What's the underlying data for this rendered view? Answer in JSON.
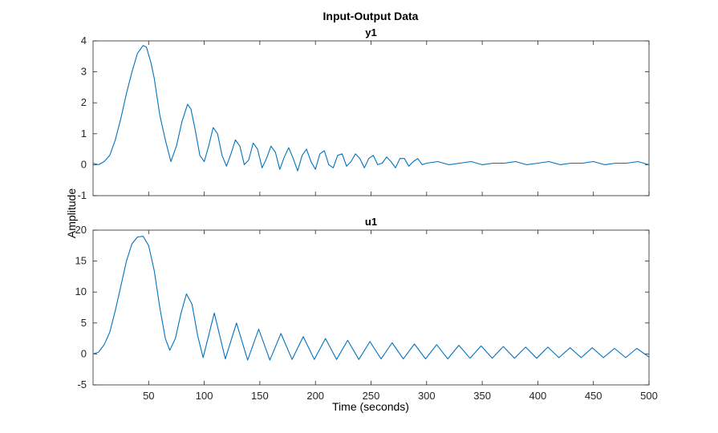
{
  "figure": {
    "title": "Input-Output Data",
    "shared_ylabel": "Amplitude",
    "shared_xlabel": "Time (seconds)"
  },
  "colors": {
    "line": "#0072BD",
    "axes": "#262626",
    "background": "#ffffff"
  },
  "chart_data": [
    {
      "type": "line",
      "title": "y1",
      "xlabel": "",
      "ylabel": "",
      "xlim": [
        0,
        500
      ],
      "ylim": [
        -1,
        4
      ],
      "xticks": [
        50,
        100,
        150,
        200,
        250,
        300,
        350,
        400,
        450,
        500
      ],
      "yticks": [
        -1,
        0,
        1,
        2,
        3,
        4
      ],
      "show_xtick_labels": false,
      "grid": false,
      "series": [
        {
          "x": [
            0,
            5,
            10,
            15,
            20,
            25,
            30,
            35,
            40,
            45,
            48,
            52,
            55,
            60,
            65,
            70,
            75,
            80,
            85,
            88,
            92,
            96,
            100,
            104,
            108,
            112,
            116,
            120,
            124,
            128,
            132,
            136,
            140,
            144,
            148,
            152,
            156,
            160,
            164,
            168,
            172,
            176,
            180,
            184,
            188,
            192,
            196,
            200,
            204,
            208,
            212,
            216,
            220,
            224,
            228,
            232,
            236,
            240,
            244,
            248,
            252,
            256,
            260,
            264,
            268,
            272,
            276,
            280,
            284,
            288,
            292,
            296,
            300,
            310,
            320,
            330,
            340,
            350,
            360,
            370,
            380,
            390,
            400,
            410,
            420,
            430,
            440,
            450,
            460,
            470,
            480,
            490,
            500
          ],
          "y": [
            0.05,
            0.0,
            0.1,
            0.3,
            0.8,
            1.5,
            2.3,
            3.0,
            3.6,
            3.85,
            3.8,
            3.3,
            2.8,
            1.6,
            0.8,
            0.1,
            0.6,
            1.4,
            1.95,
            1.8,
            1.1,
            0.3,
            0.1,
            0.6,
            1.2,
            1.0,
            0.3,
            -0.05,
            0.35,
            0.8,
            0.6,
            0.0,
            0.15,
            0.7,
            0.5,
            -0.1,
            0.2,
            0.6,
            0.4,
            -0.15,
            0.25,
            0.55,
            0.2,
            -0.2,
            0.3,
            0.5,
            0.1,
            -0.15,
            0.35,
            0.45,
            0.0,
            -0.1,
            0.3,
            0.35,
            -0.05,
            0.1,
            0.35,
            0.2,
            -0.1,
            0.2,
            0.3,
            0.0,
            0.05,
            0.25,
            0.1,
            -0.1,
            0.2,
            0.2,
            -0.05,
            0.1,
            0.2,
            0.0,
            0.05,
            0.1,
            0.0,
            0.05,
            0.1,
            0.0,
            0.05,
            0.05,
            0.1,
            0.0,
            0.05,
            0.1,
            0.0,
            0.05,
            0.05,
            0.1,
            0.0,
            0.05,
            0.05,
            0.1,
            0.0
          ]
        }
      ]
    },
    {
      "type": "line",
      "title": "u1",
      "xlabel": "",
      "ylabel": "",
      "xlim": [
        0,
        500
      ],
      "ylim": [
        -5,
        20
      ],
      "xticks": [
        50,
        100,
        150,
        200,
        250,
        300,
        350,
        400,
        450,
        500
      ],
      "yticks": [
        -5,
        0,
        5,
        10,
        15,
        20
      ],
      "show_xtick_labels": true,
      "grid": false,
      "series": [
        {
          "x": [
            0,
            5,
            10,
            15,
            20,
            25,
            30,
            35,
            40,
            45,
            50,
            55,
            60,
            65,
            69,
            74,
            79,
            84,
            89,
            94,
            99,
            109,
            119,
            129,
            139,
            149,
            159,
            169,
            179,
            189,
            199,
            209,
            219,
            229,
            239,
            249,
            259,
            269,
            279,
            289,
            299,
            309,
            319,
            329,
            339,
            349,
            359,
            369,
            379,
            389,
            399,
            409,
            419,
            429,
            439,
            449,
            459,
            469,
            479,
            489,
            500
          ],
          "y": [
            0.0,
            0.3,
            1.5,
            3.5,
            7.0,
            11.0,
            15.0,
            17.8,
            18.9,
            19.0,
            17.5,
            13.5,
            7.5,
            2.5,
            0.6,
            2.5,
            6.5,
            9.7,
            8.0,
            3.0,
            -0.6,
            6.6,
            -0.8,
            5.0,
            -1.0,
            4.0,
            -1.0,
            3.3,
            -0.9,
            2.8,
            -0.9,
            2.5,
            -0.9,
            2.2,
            -0.9,
            2.0,
            -0.8,
            1.8,
            -0.8,
            1.6,
            -0.8,
            1.5,
            -0.8,
            1.4,
            -0.7,
            1.3,
            -0.7,
            1.2,
            -0.7,
            1.1,
            -0.7,
            1.1,
            -0.6,
            1.0,
            -0.6,
            1.0,
            -0.6,
            0.9,
            -0.6,
            0.9,
            -0.5
          ]
        }
      ]
    }
  ]
}
